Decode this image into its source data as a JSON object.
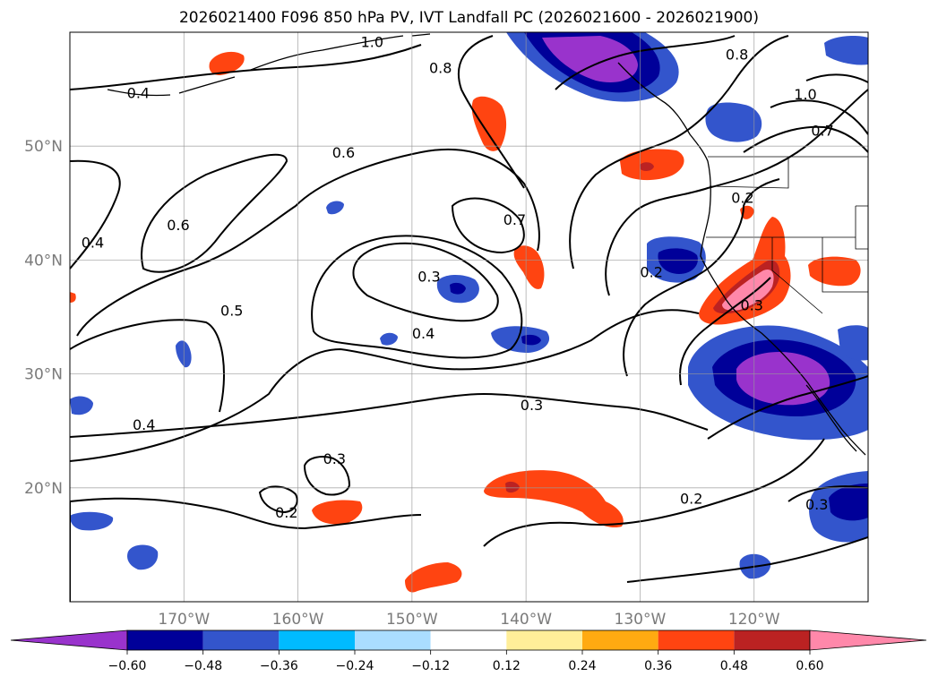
{
  "title": "2026021400 F096 850 hPa PV, IVT Landfall PC (2026021600 - 2026021900)",
  "map": {
    "extent": {
      "lon_min": -180,
      "lon_max": -110,
      "lat_min": 10,
      "lat_max": 60
    },
    "lon_ticks": [
      {
        "value": -170,
        "label": "170°W"
      },
      {
        "value": -160,
        "label": "160°W"
      },
      {
        "value": -150,
        "label": "150°W"
      },
      {
        "value": -140,
        "label": "140°W"
      },
      {
        "value": -130,
        "label": "130°W"
      },
      {
        "value": -120,
        "label": "120°W"
      }
    ],
    "lat_ticks": [
      {
        "value": 20,
        "label": "20°N"
      },
      {
        "value": 30,
        "label": "30°N"
      },
      {
        "value": 40,
        "label": "40°N"
      },
      {
        "value": 50,
        "label": "50°N"
      }
    ],
    "gridlines": true
  },
  "contour_labels": [
    {
      "text": "1.0",
      "lon": -153.5,
      "lat": 59.1
    },
    {
      "text": "0.8",
      "lon": -147.5,
      "lat": 56.8
    },
    {
      "text": "0.8",
      "lon": -121.5,
      "lat": 58.0
    },
    {
      "text": "1.0",
      "lon": -115.5,
      "lat": 54.5
    },
    {
      "text": "0.7",
      "lon": -114.0,
      "lat": 51.3
    },
    {
      "text": "0.4",
      "lon": -174.0,
      "lat": 54.6
    },
    {
      "text": "0.6",
      "lon": -156.0,
      "lat": 49.4
    },
    {
      "text": "0.6",
      "lon": -170.5,
      "lat": 43.0
    },
    {
      "text": "0.4",
      "lon": -178.0,
      "lat": 41.5
    },
    {
      "text": "0.7",
      "lon": -141.0,
      "lat": 43.5
    },
    {
      "text": "0.3",
      "lon": -148.5,
      "lat": 38.5
    },
    {
      "text": "0.5",
      "lon": -165.8,
      "lat": 35.5
    },
    {
      "text": "0.4",
      "lon": -149.0,
      "lat": 33.5
    },
    {
      "text": "0.3",
      "lon": -139.5,
      "lat": 27.2
    },
    {
      "text": "0.4",
      "lon": -173.5,
      "lat": 25.5
    },
    {
      "text": "0.3",
      "lon": -156.8,
      "lat": 22.5
    },
    {
      "text": "0.2",
      "lon": -161.0,
      "lat": 17.8
    },
    {
      "text": "0.2",
      "lon": -125.5,
      "lat": 19.0
    },
    {
      "text": "0.3",
      "lon": -114.5,
      "lat": 18.5
    },
    {
      "text": "0.2",
      "lon": -129.0,
      "lat": 38.9
    },
    {
      "text": "0.2",
      "lon": -121.0,
      "lat": 45.4
    },
    {
      "text": "0.3",
      "lon": -120.2,
      "lat": 36.0
    }
  ],
  "colorbar": {
    "colors": [
      "#9933cc",
      "#000099",
      "#3355cc",
      "#00bbff",
      "#aaddff",
      "#ffffff",
      "#ffee99",
      "#ffaa11",
      "#ff4411",
      "#bb2222",
      "#ff88aa"
    ],
    "tick_labels": [
      "−0.60",
      "−0.48",
      "−0.36",
      "−0.24",
      "−0.12",
      "0.12",
      "0.24",
      "0.36",
      "0.48",
      "0.60"
    ]
  }
}
